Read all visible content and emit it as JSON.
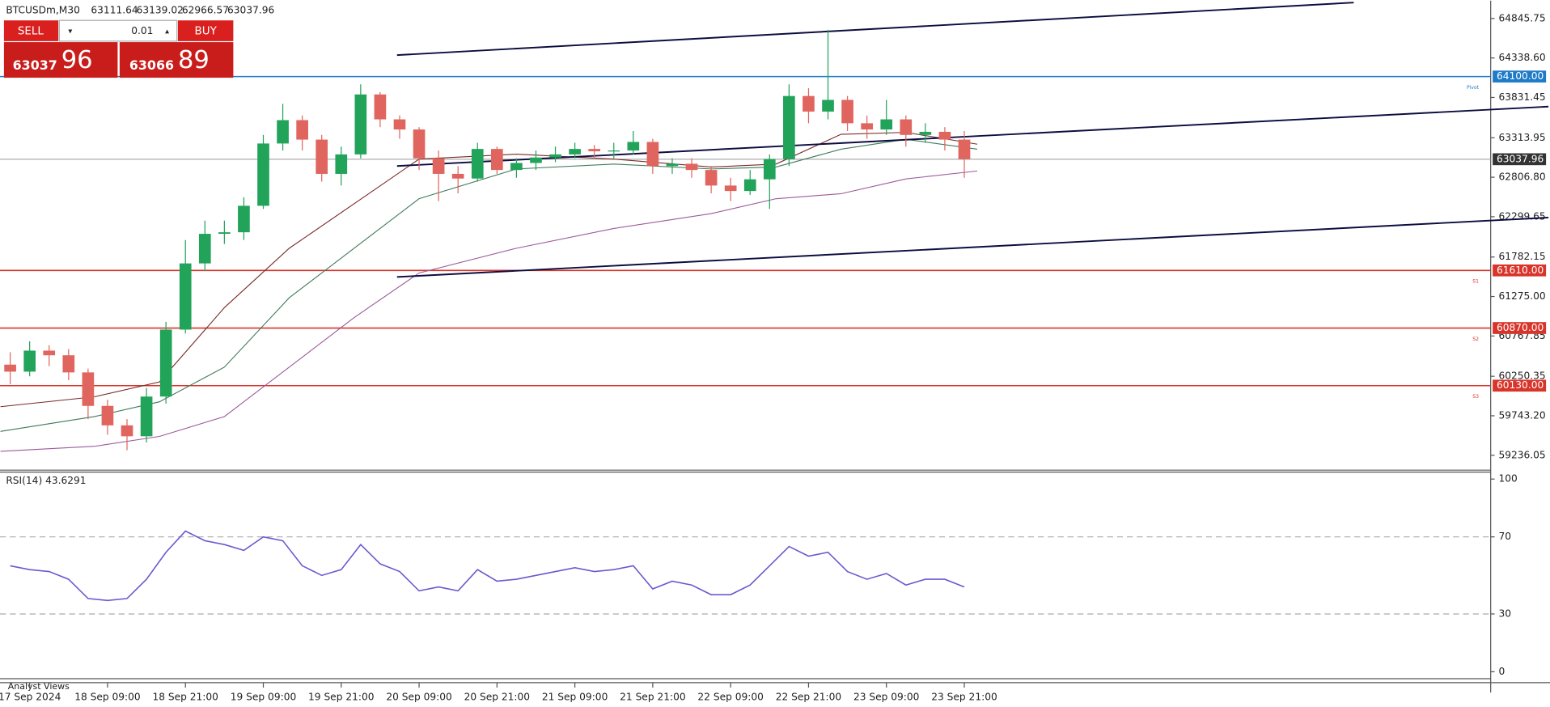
{
  "header": {
    "symbol": "BTCUSDm,M30",
    "ohlc": [
      63111.64,
      63139.02,
      62966.57,
      63037.96
    ]
  },
  "trade_panel": {
    "sell": "SELL",
    "buy": "BUY",
    "volume": "0.01",
    "sell_big": "63037",
    "sell_small": "96",
    "buy_big": "63066",
    "buy_small": "89"
  },
  "footer": "Analyst Views",
  "chart_data": {
    "type": "candlestick",
    "x": [
      -3,
      0,
      3,
      6,
      9,
      12,
      15,
      18,
      21,
      24,
      27,
      30,
      33,
      36,
      39,
      42,
      45,
      48,
      51,
      54,
      57,
      60,
      63,
      66,
      69,
      72,
      75,
      78,
      81,
      84,
      87,
      90,
      93,
      96,
      99,
      102,
      105,
      108,
      111,
      114,
      117,
      120,
      123,
      126,
      129,
      132,
      135,
      138,
      141,
      144
    ],
    "ohlc": [
      [
        60400,
        60560,
        60150,
        60310
      ],
      [
        60310,
        60700,
        60250,
        60580
      ],
      [
        60580,
        60650,
        60380,
        60520
      ],
      [
        60520,
        60600,
        60200,
        60300
      ],
      [
        60300,
        60350,
        59700,
        59870
      ],
      [
        59870,
        59950,
        59500,
        59620
      ],
      [
        59620,
        59700,
        59300,
        59480
      ],
      [
        59480,
        60100,
        59400,
        59990
      ],
      [
        59990,
        60950,
        59900,
        60850
      ],
      [
        60850,
        62000,
        60800,
        61700
      ],
      [
        61700,
        62250,
        61600,
        62080
      ],
      [
        62080,
        62250,
        61950,
        62100
      ],
      [
        62100,
        62550,
        62000,
        62440
      ],
      [
        62440,
        63350,
        62400,
        63240
      ],
      [
        63240,
        63750,
        63150,
        63540
      ],
      [
        63540,
        63600,
        63150,
        63290
      ],
      [
        63290,
        63350,
        62750,
        62850
      ],
      [
        62850,
        63200,
        62700,
        63100
      ],
      [
        63100,
        64000,
        63050,
        63870
      ],
      [
        63870,
        63900,
        63450,
        63550
      ],
      [
        63550,
        63600,
        63300,
        63420
      ],
      [
        63420,
        63450,
        62900,
        63050
      ],
      [
        63050,
        63150,
        62500,
        62850
      ],
      [
        62850,
        62950,
        62600,
        62790
      ],
      [
        62790,
        63250,
        62750,
        63170
      ],
      [
        63170,
        63200,
        62850,
        62900
      ],
      [
        62900,
        63050,
        62800,
        62990
      ],
      [
        62990,
        63150,
        62900,
        63060
      ],
      [
        63060,
        63200,
        63000,
        63100
      ],
      [
        63100,
        63250,
        63050,
        63170
      ],
      [
        63170,
        63220,
        63050,
        63140
      ],
      [
        63140,
        63250,
        63050,
        63150
      ],
      [
        63150,
        63400,
        63100,
        63260
      ],
      [
        63260,
        63300,
        62850,
        62950
      ],
      [
        62950,
        63050,
        62850,
        62980
      ],
      [
        62980,
        63050,
        62800,
        62900
      ],
      [
        62900,
        62950,
        62600,
        62700
      ],
      [
        62700,
        62800,
        62500,
        62630
      ],
      [
        62630,
        62900,
        62580,
        62780
      ],
      [
        62780,
        63100,
        62400,
        63040
      ],
      [
        63040,
        64000,
        62950,
        63850
      ],
      [
        63850,
        63950,
        63500,
        63650
      ],
      [
        63650,
        64700,
        63550,
        63800
      ],
      [
        63800,
        63850,
        63400,
        63500
      ],
      [
        63500,
        63600,
        63300,
        63420
      ],
      [
        63420,
        63800,
        63350,
        63550
      ],
      [
        63550,
        63600,
        63200,
        63350
      ],
      [
        63350,
        63500,
        63250,
        63390
      ],
      [
        63390,
        63450,
        63150,
        63290
      ],
      [
        63290,
        63400,
        62800,
        63040
      ]
    ],
    "up_color": "#22a35a",
    "down_color": "#e0655e",
    "xlim": [
      -4.57,
      225.1
    ],
    "ylim": [
      59045,
      65075
    ],
    "xticks": [
      {
        "value": 0,
        "label": "17 Sep 2024"
      },
      {
        "value": 12,
        "label": "18 Sep 09:00"
      },
      {
        "value": 24,
        "label": "18 Sep 21:00"
      },
      {
        "value": 36,
        "label": "19 Sep 09:00"
      },
      {
        "value": 48,
        "label": "19 Sep 21:00"
      },
      {
        "value": 60,
        "label": "20 Sep 09:00"
      },
      {
        "value": 72,
        "label": "20 Sep 21:00"
      },
      {
        "value": 84,
        "label": "21 Sep 09:00"
      },
      {
        "value": 96,
        "label": "21 Sep 21:00"
      },
      {
        "value": 108,
        "label": "22 Sep 09:00"
      },
      {
        "value": 120,
        "label": "22 Sep 21:00"
      },
      {
        "value": 132,
        "label": "23 Sep 09:00"
      },
      {
        "value": 144,
        "label": "23 Sep 21:00"
      }
    ],
    "yticks": [
      {
        "value": 64845.75,
        "label": "64845.75"
      },
      {
        "value": 64338.6,
        "label": "64338.60"
      },
      {
        "value": 63831.45,
        "label": "63831.45"
      },
      {
        "value": 63313.95,
        "label": "63313.95"
      },
      {
        "value": 62806.8,
        "label": "62806.80"
      },
      {
        "value": 62299.65,
        "label": "62299.65"
      },
      {
        "value": 61782.15,
        "label": "61782.15"
      },
      {
        "value": 61275,
        "label": "61275.00"
      },
      {
        "value": 60767.85,
        "label": "60767.85"
      },
      {
        "value": 60250.35,
        "label": "60250.35"
      },
      {
        "value": 59743.2,
        "label": "59743.20"
      },
      {
        "value": 59236.05,
        "label": "59236.05"
      }
    ],
    "ma_x": [
      -4.5,
      10,
      20,
      30,
      40,
      50,
      60,
      75,
      90,
      105,
      115,
      125,
      135,
      146
    ],
    "moving_averages": [
      {
        "color": "#7a2a2a",
        "values": [
          59860,
          59987,
          60178,
          61132,
          61895,
          62467,
          63040,
          63103,
          63040,
          62938,
          62976,
          63358,
          63383,
          63231
        ]
      },
      {
        "color": "#3f7a5a",
        "values": [
          59542,
          59733,
          59923,
          60368,
          61259,
          61895,
          62531,
          62913,
          62976,
          62913,
          62938,
          63167,
          63294,
          63167
        ]
      },
      {
        "color": "#9b5a9b",
        "values": [
          59287,
          59351,
          59478,
          59733,
          60368,
          61005,
          61577,
          61895,
          62149,
          62340,
          62531,
          62595,
          62785,
          62887
        ]
      }
    ],
    "levels": [
      {
        "value": 64100,
        "label": "64100.00",
        "tag": "Pivot",
        "color": "#1e7bc8"
      },
      {
        "value": 61610,
        "label": "61610.00",
        "tag": "S1",
        "color": "#d8342a"
      },
      {
        "value": 60870,
        "label": "60870.00",
        "tag": "S2",
        "color": "#d8342a"
      },
      {
        "value": 60130,
        "label": "60130.00",
        "tag": "S3",
        "color": "#d8342a"
      }
    ],
    "current_price": {
      "value": 63037.96,
      "label": "63037.96",
      "color": "#333333"
    },
    "trendlines": [
      {
        "x": [
          56.6,
          204
        ],
        "y": [
          64375,
          65050
        ]
      },
      {
        "x": [
          56.6,
          234
        ],
        "y": [
          62951,
          63714
        ]
      },
      {
        "x": [
          56.6,
          234
        ],
        "y": [
          61526,
          62289
        ]
      }
    ],
    "trendline_color": "#0d0d40",
    "rsi": {
      "title": "RSI(14) 43.6291",
      "color": "#6a5acd",
      "ylim": [
        -3.6,
        103.6
      ],
      "yticks": [
        100,
        70,
        30,
        0
      ],
      "levels": [
        70,
        30
      ],
      "values": [
        55,
        53,
        52,
        48,
        38,
        37,
        38,
        48,
        62,
        73,
        68,
        66,
        63,
        70,
        68,
        55,
        50,
        53,
        66,
        56,
        52,
        42,
        44,
        42,
        53,
        47,
        48,
        50,
        52,
        54,
        52,
        53,
        55,
        43,
        47,
        45,
        40,
        40,
        45,
        55,
        65,
        60,
        62,
        52,
        48,
        51,
        45,
        48,
        48,
        44
      ]
    }
  }
}
